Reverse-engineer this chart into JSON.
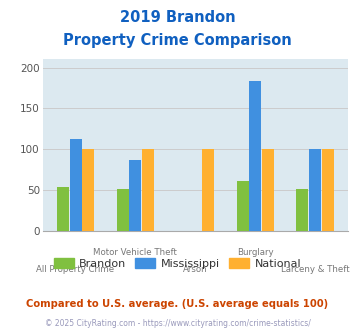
{
  "title_line1": "2019 Brandon",
  "title_line2": "Property Crime Comparison",
  "categories": [
    "All Property Crime",
    "Motor Vehicle Theft",
    "Arson",
    "Burglary",
    "Larceny & Theft"
  ],
  "brandon": [
    54,
    51,
    0,
    61,
    52
  ],
  "mississippi": [
    113,
    87,
    0,
    184,
    100
  ],
  "national": [
    100,
    100,
    100,
    100,
    100
  ],
  "brandon_color": "#80c040",
  "mississippi_color": "#4090e0",
  "national_color": "#ffb030",
  "ylim": [
    0,
    210
  ],
  "yticks": [
    0,
    50,
    100,
    150,
    200
  ],
  "grid_color": "#cccccc",
  "bg_color": "#dce9f0",
  "title_color": "#1060c0",
  "legend_labels": [
    "Brandon",
    "Mississippi",
    "National"
  ],
  "legend_text_color": "#333333",
  "footnote1": "Compared to U.S. average. (U.S. average equals 100)",
  "footnote2": "© 2025 CityRating.com - https://www.cityrating.com/crime-statistics/",
  "footnote1_color": "#cc4400",
  "footnote2_color": "#9999bb",
  "bar_width": 0.2,
  "bar_gap": 0.01,
  "row_assignment": [
    "bottom",
    "top",
    "bottom",
    "top",
    "bottom"
  ]
}
